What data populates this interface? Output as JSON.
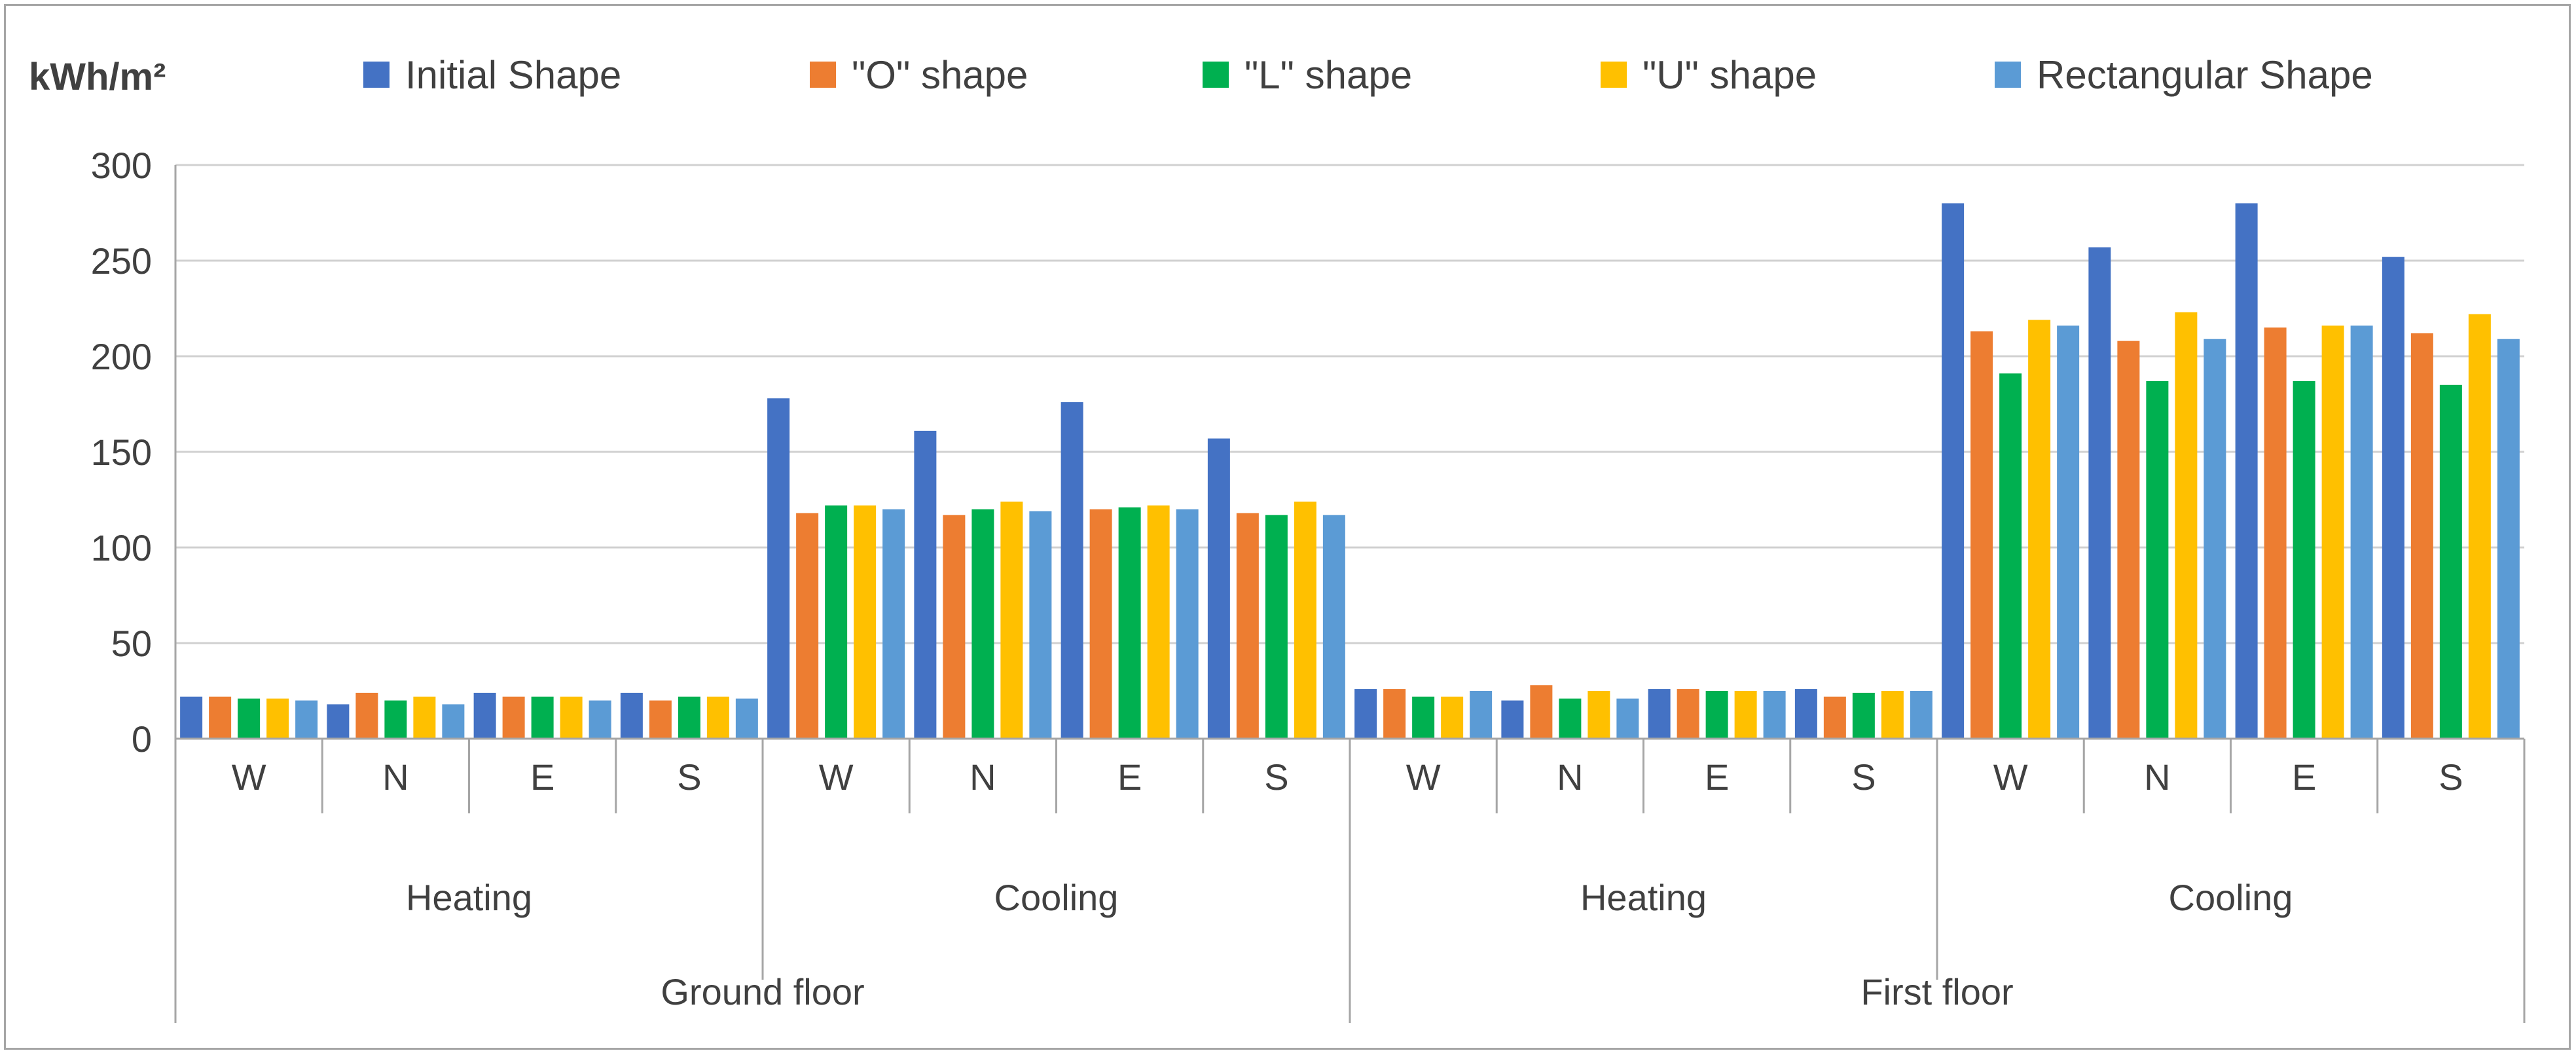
{
  "chart_data": {
    "type": "bar",
    "ylabel": "kWh/m²",
    "ylim": [
      0,
      300
    ],
    "yticks": [
      0,
      50,
      100,
      150,
      200,
      250,
      300
    ],
    "gridlines": true,
    "legend_position": "top",
    "categories": [
      "W",
      "N",
      "E",
      "S",
      "W",
      "N",
      "E",
      "S",
      "W",
      "N",
      "E",
      "S",
      "W",
      "N",
      "E",
      "S"
    ],
    "groups_level2": [
      {
        "label": "Heating",
        "span": 4
      },
      {
        "label": "Cooling",
        "span": 4
      },
      {
        "label": "Heating",
        "span": 4
      },
      {
        "label": "Cooling",
        "span": 4
      }
    ],
    "groups_level1": [
      {
        "label": "Ground floor",
        "span": 8
      },
      {
        "label": "First floor",
        "span": 8
      }
    ],
    "series": [
      {
        "name": "Initial Shape",
        "color": "#4472C4",
        "values": [
          22,
          18,
          24,
          24,
          178,
          161,
          176,
          157,
          26,
          20,
          26,
          26,
          280,
          257,
          280,
          252
        ]
      },
      {
        "name": "\"O\" shape",
        "color": "#ED7D31",
        "values": [
          22,
          24,
          22,
          20,
          118,
          117,
          120,
          118,
          26,
          28,
          26,
          22,
          213,
          208,
          215,
          212
        ]
      },
      {
        "name": "\"L\" shape",
        "color": "#00B050",
        "values": [
          21,
          20,
          22,
          22,
          122,
          120,
          121,
          117,
          22,
          21,
          25,
          24,
          191,
          187,
          187,
          185
        ]
      },
      {
        "name": "\"U\" shape",
        "color": "#FFC000",
        "values": [
          21,
          22,
          22,
          22,
          122,
          124,
          122,
          124,
          22,
          25,
          25,
          25,
          219,
          223,
          216,
          222
        ]
      },
      {
        "name": "Rectangular Shape",
        "color": "#5B9BD5",
        "values": [
          20,
          18,
          20,
          21,
          120,
          119,
          120,
          117,
          25,
          21,
          25,
          25,
          216,
          209,
          216,
          209
        ]
      }
    ]
  }
}
